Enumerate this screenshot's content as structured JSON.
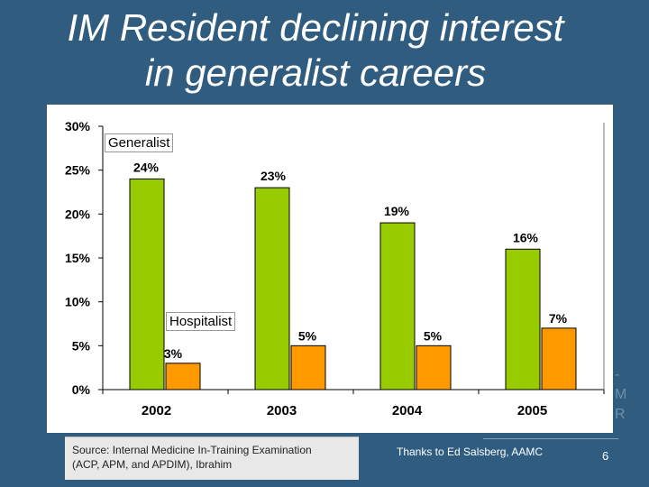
{
  "slide": {
    "title_line1": "IM Resident declining interest",
    "title_line2": "in generalist careers",
    "source_line1": "Source:  Internal Medicine In-Training Examination",
    "source_line2": "(ACP, APM, and APDIM), Ibrahim",
    "thanks": "Thanks to Ed Salsberg, AAMC",
    "slide_number": "6"
  },
  "colors": {
    "generalist": "#99cc00",
    "hospitalist": "#ff9900",
    "background": "#2f5c7f"
  },
  "chart_data": {
    "type": "bar",
    "categories": [
      "2002",
      "2003",
      "2004",
      "2005"
    ],
    "series": [
      {
        "name": "Generalist",
        "values": [
          24,
          23,
          19,
          16
        ],
        "labels": [
          "24%",
          "23%",
          "19%",
          "16%"
        ]
      },
      {
        "name": "Hospitalist",
        "values": [
          3,
          5,
          5,
          7
        ],
        "labels": [
          "3%",
          "5%",
          "5%",
          "7%"
        ]
      }
    ],
    "ylim": [
      0,
      30
    ],
    "yticks": [
      0,
      5,
      10,
      15,
      20,
      25,
      30
    ],
    "ytick_labels": [
      "0%",
      "5%",
      "10%",
      "15%",
      "20%",
      "25%",
      "30%"
    ],
    "grid": false
  }
}
